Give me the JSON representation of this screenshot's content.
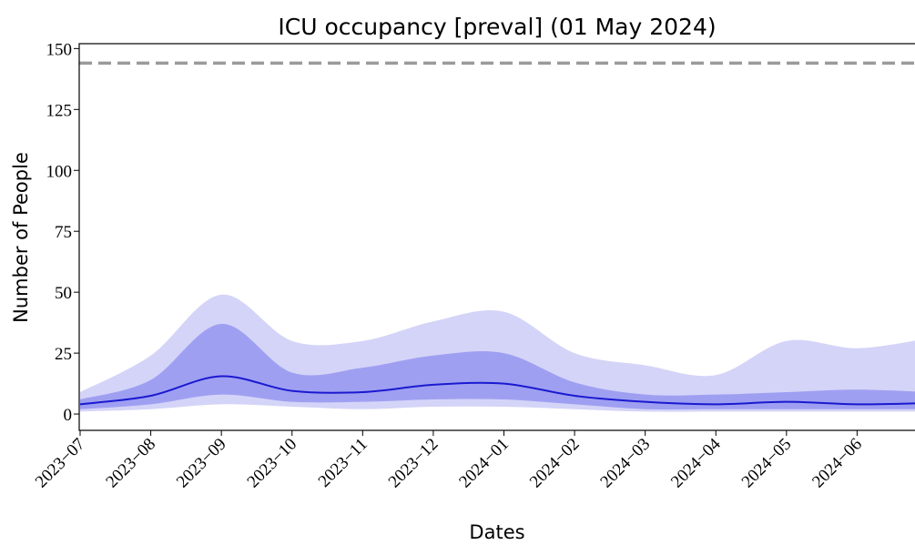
{
  "chart_data": {
    "type": "line",
    "title": "ICU occupancy [preval] (01 May 2024)",
    "xlabel": "Dates",
    "ylabel": "Number of People",
    "x": [
      "2023-07",
      "2023-08",
      "2023-09",
      "2023-10",
      "2023-11",
      "2023-12",
      "2024-01",
      "2024-02",
      "2024-03",
      "2024-04",
      "2024-05",
      "2024-06",
      "2024-07"
    ],
    "line": {
      "color": "#1a1ad0",
      "values": [
        4,
        7.5,
        15.5,
        9.5,
        9,
        12,
        12.5,
        7.5,
        5,
        4,
        5,
        4,
        4.5
      ]
    },
    "bands": [
      {
        "color": "#d4d4f8",
        "lower": [
          1,
          2,
          4,
          3,
          2,
          3,
          3,
          2,
          1,
          1,
          1,
          1,
          1
        ],
        "upper": [
          9,
          24,
          49,
          30,
          30,
          38,
          42,
          25,
          20,
          16,
          30,
          27,
          31
        ]
      },
      {
        "color": "#9f9ff2",
        "lower": [
          2,
          4,
          8,
          5,
          5,
          6,
          6,
          4,
          2,
          2,
          2,
          2,
          2
        ],
        "upper": [
          6,
          14,
          37,
          17,
          19,
          24,
          25,
          13,
          8,
          8,
          9,
          10,
          9
        ]
      }
    ],
    "hlines": [
      {
        "value": 144,
        "color": "#9a9a9a"
      }
    ],
    "xlim": [
      "2023-07",
      "2024-07"
    ],
    "xticks": [
      {
        "value": "2023-07",
        "label": "2023−07"
      },
      {
        "value": "2023-08",
        "label": "2023−08"
      },
      {
        "value": "2023-09",
        "label": "2023−09"
      },
      {
        "value": "2023-10",
        "label": "2023−10"
      },
      {
        "value": "2023-11",
        "label": "2023−11"
      },
      {
        "value": "2023-12",
        "label": "2023−12"
      },
      {
        "value": "2024-01",
        "label": "2024−01"
      },
      {
        "value": "2024-02",
        "label": "2024−02"
      },
      {
        "value": "2024-03",
        "label": "2024−03"
      },
      {
        "value": "2024-04",
        "label": "2024−04"
      },
      {
        "value": "2024-05",
        "label": "2024−05"
      },
      {
        "value": "2024-06",
        "label": "2024−06"
      }
    ],
    "ylim": [
      -6.7,
      152
    ],
    "yticks": [
      0,
      25,
      50,
      75,
      100,
      125,
      150
    ]
  }
}
